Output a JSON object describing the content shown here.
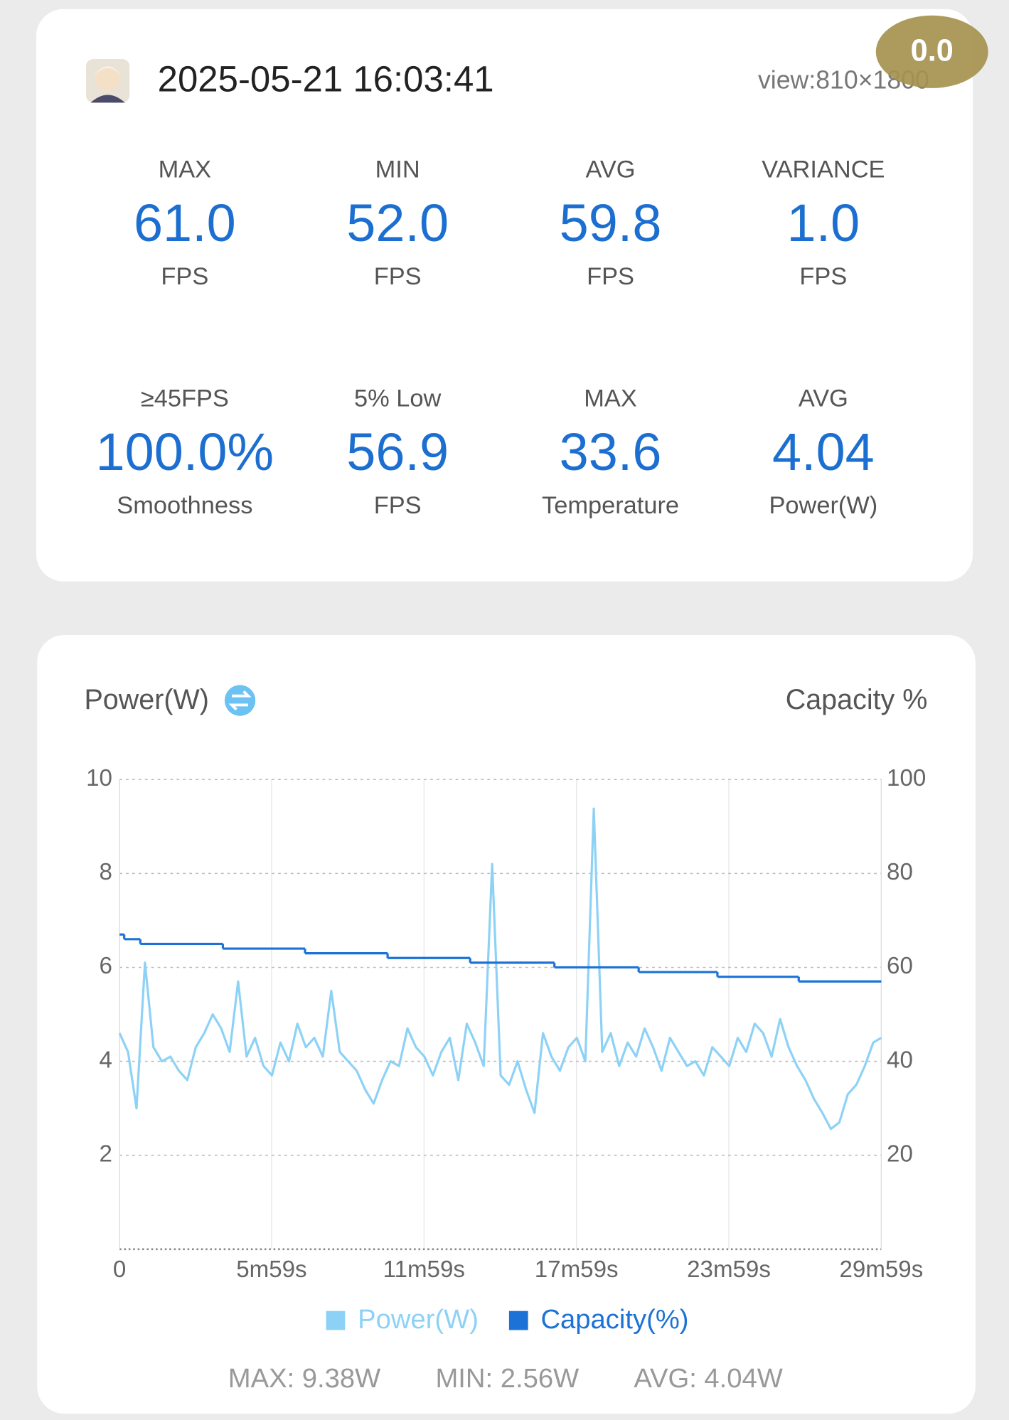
{
  "header": {
    "timestamp": "2025-05-21 16:03:41",
    "view": "view:810×1800",
    "badge": "0.0"
  },
  "stats": [
    {
      "label": "MAX",
      "value": "61.0",
      "unit": "FPS"
    },
    {
      "label": "MIN",
      "value": "52.0",
      "unit": "FPS"
    },
    {
      "label": "AVG",
      "value": "59.8",
      "unit": "FPS"
    },
    {
      "label": "VARIANCE",
      "value": "1.0",
      "unit": "FPS"
    },
    {
      "label": "≥45FPS",
      "value": "100.0%",
      "unit": "Smoothness"
    },
    {
      "label": "5% Low",
      "value": "56.9",
      "unit": "FPS"
    },
    {
      "label": "MAX",
      "value": "33.6",
      "unit": "Temperature"
    },
    {
      "label": "AVG",
      "value": "4.04",
      "unit": "Power(W)"
    }
  ],
  "chart_data": {
    "type": "line",
    "title": "Power(W)",
    "y2_title": "Capacity %",
    "xlim": [
      0,
      1799
    ],
    "xticks": [
      0,
      {
        "value": 359,
        "label": "5m59s"
      },
      {
        "value": 719,
        "label": "11m59s"
      },
      {
        "value": 1079,
        "label": "17m59s"
      },
      {
        "value": 1439,
        "label": "23m59s"
      },
      {
        "value": 1799,
        "label": "29m59s"
      }
    ],
    "ylim": [
      0,
      10
    ],
    "yticks": [
      2,
      4,
      6,
      8,
      10
    ],
    "y2lim": [
      0,
      100
    ],
    "y2ticks": [
      20,
      40,
      60,
      80,
      100
    ],
    "grid": true,
    "legend": "bottom",
    "series": [
      {
        "name": "Power(W)",
        "color": "#8dd2f6",
        "x": [
          0,
          20,
          40,
          60,
          80,
          100,
          120,
          140,
          160,
          180,
          200,
          220,
          240,
          260,
          280,
          300,
          320,
          340,
          360,
          380,
          400,
          420,
          440,
          460,
          480,
          500,
          520,
          540,
          560,
          580,
          600,
          620,
          640,
          660,
          680,
          700,
          720,
          740,
          760,
          780,
          800,
          820,
          840,
          860,
          880,
          900,
          920,
          940,
          960,
          980,
          1000,
          1020,
          1040,
          1060,
          1080,
          1100,
          1120,
          1140,
          1160,
          1180,
          1200,
          1220,
          1240,
          1260,
          1280,
          1300,
          1320,
          1340,
          1360,
          1380,
          1400,
          1420,
          1440,
          1460,
          1480,
          1500,
          1520,
          1540,
          1560,
          1580,
          1600,
          1620,
          1640,
          1660,
          1680,
          1700,
          1720,
          1740,
          1760,
          1780,
          1799
        ],
        "values": [
          4.6,
          4.2,
          3.0,
          6.1,
          4.3,
          4.0,
          4.1,
          3.8,
          3.6,
          4.3,
          4.6,
          5.0,
          4.7,
          4.2,
          5.7,
          4.1,
          4.5,
          3.9,
          3.7,
          4.4,
          4.0,
          4.8,
          4.3,
          4.5,
          4.1,
          5.5,
          4.2,
          4.0,
          3.8,
          3.4,
          3.1,
          3.6,
          4.0,
          3.9,
          4.7,
          4.3,
          4.1,
          3.7,
          4.2,
          4.5,
          3.6,
          4.8,
          4.4,
          3.9,
          8.2,
          3.7,
          3.5,
          4.0,
          3.4,
          2.9,
          4.6,
          4.1,
          3.8,
          4.3,
          4.5,
          4.0,
          9.38,
          4.2,
          4.6,
          3.9,
          4.4,
          4.1,
          4.7,
          4.3,
          3.8,
          4.5,
          4.2,
          3.9,
          4.0,
          3.7,
          4.3,
          4.1,
          3.9,
          4.5,
          4.2,
          4.8,
          4.6,
          4.1,
          4.9,
          4.3,
          3.9,
          3.6,
          3.2,
          2.9,
          2.56,
          2.7,
          3.3,
          3.5,
          3.9,
          4.4,
          4.5
        ]
      },
      {
        "name": "Capacity(%)",
        "color": "#1c72d6",
        "axis": "y2",
        "shape": "step",
        "x": [
          0,
          11,
          49,
          244,
          438,
          633,
          828,
          1027,
          1226,
          1412,
          1604
        ],
        "values": [
          67,
          66,
          65,
          64,
          63,
          62,
          61,
          60,
          59,
          58,
          57
        ]
      }
    ],
    "summary": [
      "MAX: 9.38W",
      "MIN: 2.56W",
      "AVG: 4.04W"
    ]
  }
}
